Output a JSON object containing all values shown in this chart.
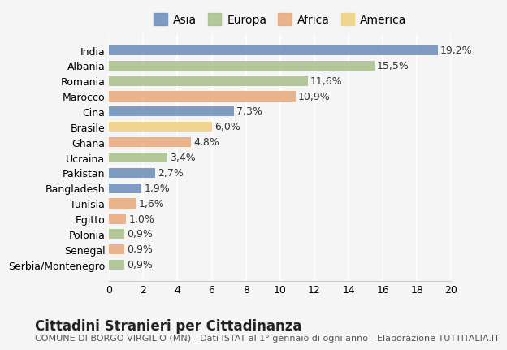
{
  "countries": [
    "India",
    "Albania",
    "Romania",
    "Marocco",
    "Cina",
    "Brasile",
    "Ghana",
    "Ucraina",
    "Pakistan",
    "Bangladesh",
    "Tunisia",
    "Egitto",
    "Polonia",
    "Senegal",
    "Serbia/Montenegro"
  ],
  "values": [
    19.2,
    15.5,
    11.6,
    10.9,
    7.3,
    6.0,
    4.8,
    3.4,
    2.7,
    1.9,
    1.6,
    1.0,
    0.9,
    0.9,
    0.9
  ],
  "continents": [
    "Asia",
    "Europa",
    "Europa",
    "Africa",
    "Asia",
    "America",
    "Africa",
    "Europa",
    "Asia",
    "Asia",
    "Africa",
    "Africa",
    "Europa",
    "Africa",
    "Europa"
  ],
  "continent_colors": {
    "Asia": "#6b8cba",
    "Europa": "#a8bf8a",
    "Africa": "#e8a87c",
    "America": "#f0d080"
  },
  "legend_order": [
    "Asia",
    "Europa",
    "Africa",
    "America"
  ],
  "title": "Cittadini Stranieri per Cittadinanza",
  "subtitle": "COMUNE DI BORGO VIRGILIO (MN) - Dati ISTAT al 1° gennaio di ogni anno - Elaborazione TUTTITALIA.IT",
  "xlabel": "",
  "xlim": [
    0,
    20
  ],
  "xticks": [
    0,
    2,
    4,
    6,
    8,
    10,
    12,
    14,
    16,
    18,
    20
  ],
  "background_color": "#f5f5f5",
  "bar_height": 0.65,
  "label_fontsize": 9,
  "title_fontsize": 12,
  "subtitle_fontsize": 8,
  "tick_fontsize": 9,
  "legend_fontsize": 10
}
